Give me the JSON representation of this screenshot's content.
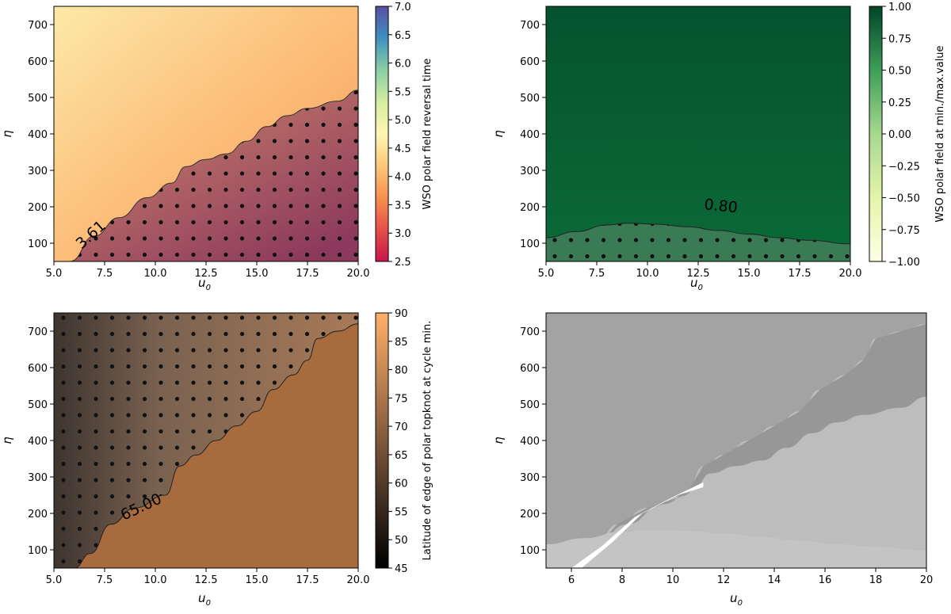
{
  "chart_data": [
    {
      "type": "heatmap",
      "id": "A",
      "xlabel": "u",
      "xlabel_sub": "0",
      "ylabel": "η",
      "xlim": [
        5.0,
        20.0
      ],
      "ylim": [
        50,
        750
      ],
      "x_ticks": [
        "5.0",
        "7.5",
        "10.0",
        "12.5",
        "15.0",
        "17.5",
        "20.0"
      ],
      "y_ticks": [
        "100",
        "200",
        "300",
        "400",
        "500",
        "600",
        "700"
      ],
      "colorbar_label": "WSO polar field reversal time",
      "colorbar_range": [
        2.5,
        7.0
      ],
      "colorbar_ticks": [
        "2.5",
        "3.0",
        "3.5",
        "4.0",
        "4.5",
        "5.0",
        "5.5",
        "6.0",
        "6.5",
        "7.0"
      ],
      "contour_label": "3.61",
      "contour_value": 3.61,
      "contour_boundary": [
        [
          5.8,
          50
        ],
        [
          7.0,
          120
        ],
        [
          8.2,
          170
        ],
        [
          9.6,
          225
        ],
        [
          10.8,
          265
        ],
        [
          11.5,
          310
        ],
        [
          12.5,
          330
        ],
        [
          13.5,
          345
        ],
        [
          14.5,
          380
        ],
        [
          15.5,
          420
        ],
        [
          16.5,
          450
        ],
        [
          17.5,
          470
        ],
        [
          19.0,
          490
        ],
        [
          20.0,
          520
        ]
      ],
      "stippled_region": "below-contour"
    },
    {
      "type": "heatmap",
      "id": "B",
      "xlabel": "u",
      "xlabel_sub": "0",
      "ylabel": "η",
      "xlim": [
        5.0,
        20.0
      ],
      "ylim": [
        50,
        750
      ],
      "x_ticks": [
        "5.0",
        "7.5",
        "10.0",
        "12.5",
        "15.0",
        "17.5",
        "20.0"
      ],
      "y_ticks": [
        "100",
        "200",
        "300",
        "400",
        "500",
        "600",
        "700"
      ],
      "colorbar_label": "WSO polar field at min./max.value",
      "colorbar_range": [
        -1.0,
        1.0
      ],
      "colorbar_ticks": [
        "−1.00",
        "−0.75",
        "−0.50",
        "−0.25",
        "0.00",
        "0.25",
        "0.50",
        "0.75",
        "1.00"
      ],
      "contour_label": "0.80",
      "contour_value": 0.8,
      "contour_boundary": [
        [
          5.0,
          115
        ],
        [
          6.5,
          132
        ],
        [
          8.0,
          150
        ],
        [
          9.0,
          155
        ],
        [
          10.5,
          152
        ],
        [
          12.0,
          145
        ],
        [
          13.5,
          135
        ],
        [
          15.0,
          125
        ],
        [
          16.5,
          115
        ],
        [
          18.0,
          108
        ],
        [
          20.0,
          98
        ]
      ],
      "stippled_region": "below-contour"
    },
    {
      "type": "heatmap",
      "id": "C",
      "xlabel": "u",
      "xlabel_sub": "0",
      "ylabel": "η",
      "xlim": [
        5.0,
        20.0
      ],
      "ylim": [
        50,
        750
      ],
      "x_ticks": [
        "5.0",
        "7.5",
        "10.0",
        "12.5",
        "15.0",
        "17.5",
        "20.0"
      ],
      "y_ticks": [
        "100",
        "200",
        "300",
        "400",
        "500",
        "600",
        "700"
      ],
      "colorbar_label": "Latitude of edge of polar topknot at cycle min.",
      "colorbar_range": [
        45,
        90
      ],
      "colorbar_ticks": [
        "45",
        "50",
        "55",
        "60",
        "65",
        "70",
        "75",
        "80",
        "85",
        "90"
      ],
      "contour_label": "65.00",
      "contour_value": 65.0,
      "contour_boundary": [
        [
          6.0,
          50
        ],
        [
          6.8,
          90
        ],
        [
          7.8,
          170
        ],
        [
          9.0,
          215
        ],
        [
          10.5,
          250
        ],
        [
          11.2,
          330
        ],
        [
          12.0,
          360
        ],
        [
          13.0,
          400
        ],
        [
          14.0,
          440
        ],
        [
          15.0,
          480
        ],
        [
          15.8,
          540
        ],
        [
          16.8,
          580
        ],
        [
          17.5,
          620
        ],
        [
          18.0,
          680
        ],
        [
          19.0,
          700
        ],
        [
          20.0,
          720
        ]
      ],
      "stippled_region": "above-contour"
    },
    {
      "type": "area",
      "id": "D",
      "xlabel": "u",
      "xlabel_sub": "0",
      "ylabel": "η",
      "xlim": [
        5,
        20
      ],
      "ylim": [
        50,
        750
      ],
      "x_ticks": [
        "6",
        "8",
        "10",
        "12",
        "14",
        "16",
        "18",
        "20"
      ],
      "y_ticks": [
        "100",
        "200",
        "300",
        "400",
        "500",
        "600",
        "700"
      ],
      "regions": [
        "overlap of stippled regions from panels A, B and C"
      ]
    }
  ]
}
